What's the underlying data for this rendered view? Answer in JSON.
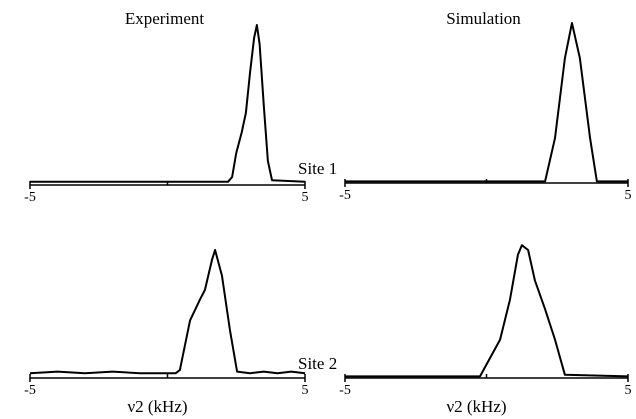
{
  "chart_data": [
    {
      "type": "line",
      "title": "Experiment",
      "x": [
        -5,
        -3,
        -1,
        1,
        2.2,
        2.35,
        2.5,
        2.7,
        2.85,
        3.0,
        3.15,
        3.25,
        3.35,
        3.5,
        3.65,
        3.8,
        5
      ],
      "values": [
        2,
        2,
        2,
        2,
        2,
        5,
        20,
        33,
        45,
        70,
        92,
        100,
        88,
        50,
        15,
        3,
        2
      ],
      "xlim": [
        -5,
        5
      ],
      "xticks": [
        -5,
        5
      ],
      "xminorticks": [
        0
      ],
      "ylim": [
        0,
        100
      ],
      "color": "#000000"
    },
    {
      "type": "line",
      "title": "Simulation",
      "annotation": "Site 1",
      "x": [
        -5,
        -2,
        0,
        1.5,
        2.07,
        2.42,
        2.77,
        3.02,
        3.3,
        3.66,
        3.9,
        5
      ],
      "values": [
        1,
        1,
        1,
        1,
        1,
        28,
        78,
        100,
        78,
        28,
        1,
        1
      ],
      "xlim": [
        -5,
        5
      ],
      "xticks": [
        -5,
        5
      ],
      "xminorticks": [
        0
      ],
      "ylim": [
        0,
        100
      ],
      "color": "#000000"
    },
    {
      "type": "line",
      "xlabel": "ν2 (kHz)",
      "x": [
        -5,
        -4,
        -3,
        -2,
        -1,
        0,
        0.3,
        0.45,
        0.82,
        1.18,
        1.36,
        1.62,
        1.73,
        1.98,
        2.27,
        2.53,
        3,
        3.5,
        4,
        4.5,
        5
      ],
      "values": [
        3,
        4,
        3,
        4,
        3,
        3,
        3,
        5,
        36,
        49,
        55,
        74,
        80,
        64,
        30,
        4,
        3,
        4,
        3,
        4,
        3
      ],
      "xlim": [
        -5,
        5
      ],
      "xticks": [
        -5,
        5
      ],
      "xminorticks": [
        0
      ],
      "ylim": [
        0,
        100
      ],
      "color": "#000000"
    },
    {
      "type": "line",
      "xlabel": "ν2 (kHz)",
      "annotation": "Site 2",
      "x": [
        -5,
        -2,
        -0.23,
        0.48,
        0.83,
        1.11,
        1.25,
        1.47,
        1.71,
        2.07,
        2.42,
        2.77,
        5
      ],
      "values": [
        1,
        1,
        1,
        24,
        49,
        77,
        83,
        80,
        61,
        43,
        24,
        2,
        1
      ],
      "xlim": [
        -5,
        5
      ],
      "xticks": [
        -5,
        5
      ],
      "xminorticks": [
        0
      ],
      "ylim": [
        0,
        100
      ],
      "color": "#000000"
    }
  ]
}
